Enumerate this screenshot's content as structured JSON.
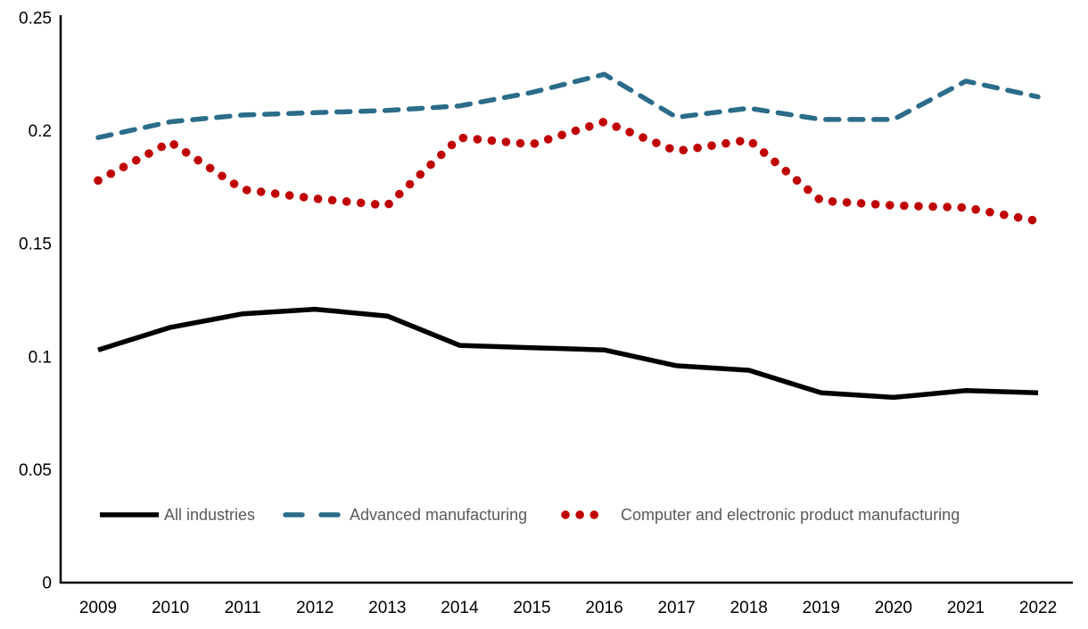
{
  "chart_data": {
    "type": "line",
    "title": "",
    "xlabel": "",
    "ylabel": "",
    "categories": [
      "2009",
      "2010",
      "2011",
      "2012",
      "2013",
      "2014",
      "2015",
      "2016",
      "2017",
      "2018",
      "2019",
      "2020",
      "2021",
      "2022"
    ],
    "series": [
      {
        "name": "All industries",
        "color": "#000000",
        "style": "solid",
        "values": [
          0.103,
          0.113,
          0.119,
          0.121,
          0.118,
          0.105,
          0.104,
          0.103,
          0.096,
          0.094,
          0.084,
          0.082,
          0.085,
          0.084
        ]
      },
      {
        "name": "Advanced manufacturing",
        "color": "#2B6C8A",
        "style": "dashed",
        "values": [
          0.197,
          0.204,
          0.207,
          0.208,
          0.209,
          0.211,
          0.217,
          0.225,
          0.206,
          0.21,
          0.205,
          0.205,
          0.222,
          0.215
        ]
      },
      {
        "name": "Computer and electronic product manufacturing",
        "color": "#C00000",
        "style": "dotted",
        "values": [
          0.178,
          0.195,
          0.174,
          0.17,
          0.167,
          0.197,
          0.194,
          0.204,
          0.191,
          0.196,
          0.169,
          0.167,
          0.166,
          0.16
        ]
      }
    ],
    "ylim": [
      0,
      0.25
    ],
    "yticks": [
      0,
      0.05,
      0.1,
      0.15,
      0.2,
      0.25
    ],
    "ytick_labels": [
      "0",
      "0.05",
      "0.1",
      "0.15",
      "0.2",
      "0.25"
    ],
    "grid": false,
    "legend_position": "bottom-left-inside"
  },
  "colors": {
    "axis_line": "#000000",
    "axis_text": "#000000",
    "legend_text": "#595959",
    "background": "#ffffff"
  }
}
